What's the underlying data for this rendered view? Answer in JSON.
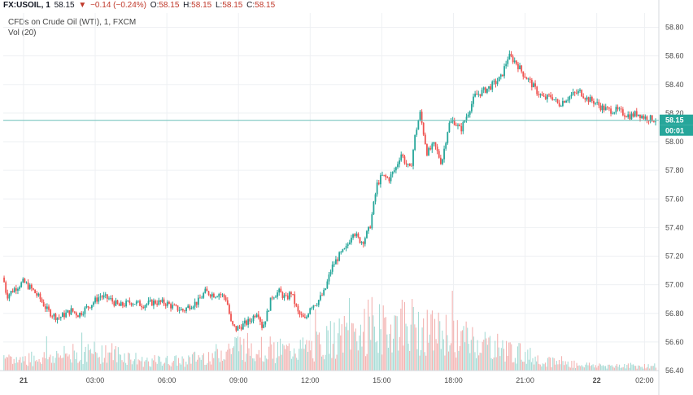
{
  "header": {
    "symbol": "FX:USOIL, 1",
    "last": "58.15",
    "change_arrow": "▼",
    "change": "−0.14 (−0.24%)",
    "open_label": "O:",
    "open": "58.15",
    "high_label": "H:",
    "high": "58.15",
    "low_label": "L:",
    "low": "58.15",
    "close_label": "C:",
    "close": "58.15"
  },
  "subtitle": "CFDs on Crude Oil (WTI), 1, FXCM",
  "volume_label": "Vol (20)",
  "current_price_tag": "58.15",
  "countdown_tag": "00:01",
  "colors": {
    "up": "#26a69a",
    "down": "#ef5350",
    "price_line": "#6bbfb9",
    "grid": "#eef0f3",
    "tag": "#26a69a"
  },
  "chart_data": {
    "type": "line",
    "title": "CFDs on Crude Oil (WTI), 1, FXCM",
    "xlabel": "",
    "ylabel": "",
    "ylim": [
      56.4,
      58.9
    ],
    "y_ticks": [
      "58.80",
      "58.60",
      "58.40",
      "58.20",
      "58.00",
      "57.80",
      "57.60",
      "57.40",
      "57.20",
      "57.00",
      "56.80",
      "56.60",
      "56.40"
    ],
    "x_ticks": [
      "21",
      "03:00",
      "06:00",
      "09:00",
      "12:00",
      "15:00",
      "18:00",
      "21:00",
      "22",
      "02:00"
    ],
    "x_tick_hours": [
      0,
      3,
      6,
      9,
      12,
      15,
      18,
      21,
      24,
      26
    ],
    "x_range_hours": [
      -0.85,
      26.6
    ],
    "current_price": 58.15,
    "series": [
      {
        "name": "USOIL price",
        "x_hours": [
          -0.85,
          -0.7,
          -0.4,
          0.0,
          0.4,
          0.7,
          1.0,
          1.3,
          1.5,
          1.8,
          2.0,
          2.3,
          2.5,
          2.8,
          3.2,
          3.6,
          4.0,
          4.5,
          5.0,
          5.5,
          6.0,
          6.3,
          6.7,
          7.0,
          7.3,
          7.6,
          8.0,
          8.2,
          8.5,
          8.7,
          8.9,
          9.2,
          9.5,
          9.8,
          10.0,
          10.2,
          10.4,
          10.7,
          11.0,
          11.2,
          11.5,
          11.8,
          12.0,
          12.3,
          12.6,
          12.9,
          13.2,
          13.5,
          13.8,
          14.0,
          14.2,
          14.5,
          14.8,
          15.0,
          15.3,
          15.6,
          15.8,
          16.0,
          16.2,
          16.4,
          16.6,
          16.9,
          17.2,
          17.5,
          17.8,
          18.0,
          18.3,
          18.6,
          18.9,
          19.2,
          19.5,
          19.8,
          20.0,
          20.3,
          20.6,
          20.9,
          21.2,
          21.5,
          21.8,
          22.1,
          22.4,
          22.7,
          23.0,
          23.3,
          23.6,
          23.9,
          24.2,
          24.5,
          24.8,
          25.1,
          25.4,
          25.7,
          26.0,
          26.3,
          26.5
        ],
        "values": [
          57.05,
          56.92,
          56.97,
          57.02,
          56.96,
          56.9,
          56.82,
          56.78,
          56.77,
          56.8,
          56.82,
          56.79,
          56.82,
          56.86,
          56.92,
          56.9,
          56.85,
          56.88,
          56.86,
          56.88,
          56.87,
          56.84,
          56.82,
          56.86,
          56.88,
          56.95,
          56.93,
          56.94,
          56.9,
          56.72,
          56.69,
          56.72,
          56.75,
          56.82,
          56.7,
          56.8,
          56.92,
          56.95,
          56.9,
          56.95,
          56.8,
          56.75,
          56.85,
          56.88,
          56.95,
          57.12,
          57.2,
          57.25,
          57.38,
          57.32,
          57.3,
          57.4,
          57.7,
          57.76,
          57.74,
          57.82,
          57.92,
          57.85,
          57.8,
          58.05,
          58.2,
          57.92,
          57.98,
          57.85,
          58.12,
          58.15,
          58.08,
          58.2,
          58.32,
          58.35,
          58.38,
          58.42,
          58.45,
          58.6,
          58.56,
          58.48,
          58.42,
          58.35,
          58.3,
          58.32,
          58.26,
          58.3,
          58.33,
          58.35,
          58.3,
          58.28,
          58.24,
          58.22,
          58.22,
          58.2,
          58.18,
          58.2,
          58.17,
          58.16,
          58.15
        ]
      },
      {
        "name": "Vol (20)",
        "x_hours": [
          -0.85,
          0.5,
          2.0,
          3.5,
          5.0,
          6.5,
          8.0,
          9.0,
          10.0,
          11.0,
          12.0,
          13.0,
          14.0,
          15.0,
          16.0,
          17.0,
          18.0,
          19.0,
          20.0,
          21.0,
          22.0,
          23.0,
          24.0,
          25.0,
          26.5
        ],
        "values": [
          0.15,
          0.2,
          0.25,
          0.3,
          0.15,
          0.15,
          0.25,
          0.4,
          0.35,
          0.3,
          0.35,
          0.5,
          0.6,
          0.65,
          0.75,
          0.6,
          0.55,
          0.45,
          0.35,
          0.25,
          0.15,
          0.1,
          0.08,
          0.08,
          0.07
        ]
      }
    ]
  }
}
